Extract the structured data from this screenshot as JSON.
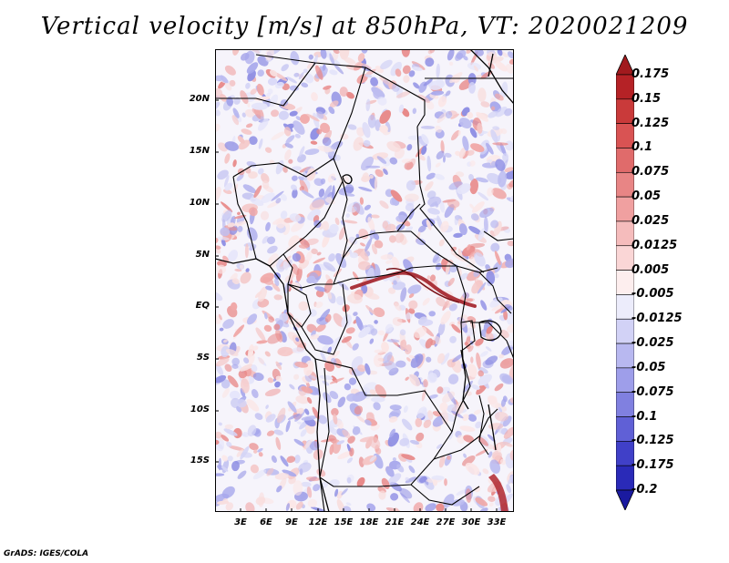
{
  "title": "Vertical velocity [m/s] at 850hPa, VT: 2020021209",
  "map": {
    "lon_range": [
      0,
      35
    ],
    "lat_range": [
      -20,
      25
    ],
    "lat_ticks": [
      "20N",
      "15N",
      "10N",
      "5N",
      "EQ",
      "5S",
      "10S",
      "15S"
    ],
    "lon_ticks": [
      "3E",
      "6E",
      "9E",
      "12E",
      "15E",
      "18E",
      "21E",
      "24E",
      "27E",
      "30E",
      "33E"
    ],
    "variable": "vertical velocity",
    "level": "850hPa",
    "valid_time": "2020021209"
  },
  "colorbar": {
    "labels": [
      "0.175",
      "0.15",
      "0.125",
      "0.1",
      "0.075",
      "0.05",
      "0.025",
      "0.0125",
      "0.005",
      "-0.005",
      "-0.0125",
      "-0.025",
      "-0.05",
      "-0.075",
      "-0.1",
      "-0.125",
      "-0.175",
      "-0.2"
    ],
    "colors": [
      "#a11a1e",
      "#b52226",
      "#c93a3a",
      "#d95353",
      "#e06b6b",
      "#e88585",
      "#f0a0a0",
      "#f5bcbc",
      "#fad6d6",
      "#fdeeee",
      "#ececfb",
      "#d2d2f6",
      "#b8b8f0",
      "#9e9eea",
      "#8080e0",
      "#6060d6",
      "#4040c8",
      "#2a2ab8",
      "#1a1aa0"
    ]
  },
  "footer": "GrADS: IGES/COLA"
}
